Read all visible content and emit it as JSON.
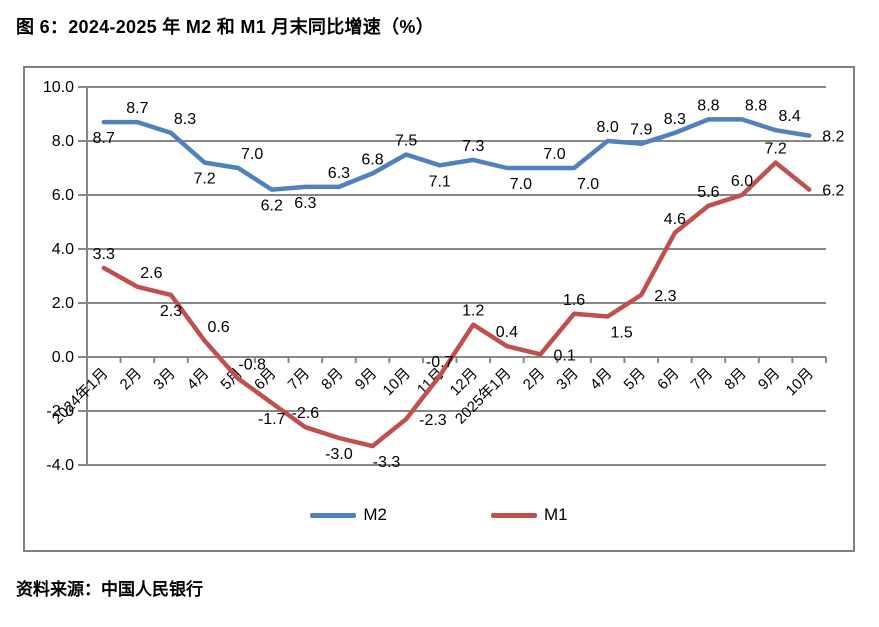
{
  "page": {
    "title": "图 6：2024-2025 年 M2 和 M1 月末同比增速（%）",
    "source": "资料来源：中国人民银行"
  },
  "chart_data": {
    "type": "line",
    "title": "图 6：2024-2025 年 M2 和 M1 月末同比增速（%）",
    "xlabel": "",
    "ylabel": "",
    "ylim": [
      -4.0,
      10.0
    ],
    "ytick_step": 2.0,
    "ytick_labels": [
      "10.0",
      "8.0",
      "6.0",
      "4.0",
      "2.0",
      "0.0",
      "-2.0",
      "-4.0"
    ],
    "grid": "horizontal",
    "legend_position": "bottom",
    "gridline_color": "#878787",
    "border_color": "#808080",
    "axis_text_color": "#000000",
    "categories": [
      "2024年1月",
      "2月",
      "3月",
      "4月",
      "5月",
      "6月",
      "7月",
      "8月",
      "9月",
      "10月",
      "11月",
      "12月",
      "2025年1月",
      "2月",
      "3月",
      "4月",
      "5月",
      "6月",
      "7月",
      "8月",
      "9月",
      "10月"
    ],
    "series": [
      {
        "name": "M2",
        "color": "#4F81BD",
        "values": [
          8.7,
          8.7,
          8.3,
          7.2,
          7.0,
          6.2,
          6.3,
          6.3,
          6.8,
          7.5,
          7.1,
          7.3,
          7.0,
          7.0,
          7.0,
          8.0,
          7.9,
          8.3,
          8.8,
          8.8,
          8.4,
          8.2
        ],
        "label_sides": [
          "b",
          "a",
          "ar",
          "b",
          "ar",
          "b",
          "b",
          "a",
          "a",
          "a",
          "b",
          "a",
          "br",
          "ar",
          "br",
          "a",
          "a",
          "a",
          "a",
          "ar",
          "ar",
          "r"
        ]
      },
      {
        "name": "M1",
        "color": "#C0504D",
        "values": [
          3.3,
          2.6,
          2.3,
          0.6,
          -0.8,
          -1.7,
          -2.6,
          -3.0,
          -3.3,
          -2.3,
          -0.7,
          1.2,
          0.4,
          0.1,
          1.6,
          1.5,
          2.3,
          4.6,
          5.6,
          6.0,
          7.2,
          6.2
        ],
        "label_sides": [
          "a",
          "ar",
          "b",
          "ar",
          "ar",
          "b",
          "a",
          "b",
          "br",
          "r",
          "a",
          "a",
          "a",
          "r",
          "a",
          "br",
          "r",
          "a",
          "a",
          "a",
          "a",
          "r"
        ]
      }
    ]
  }
}
